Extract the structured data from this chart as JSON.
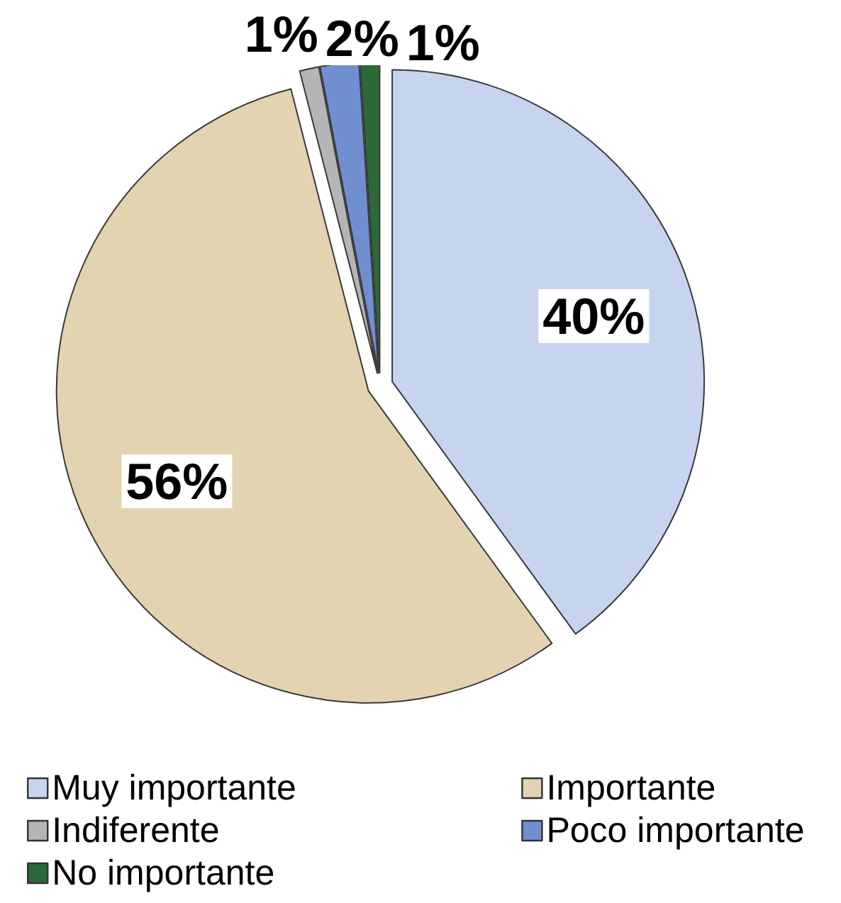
{
  "chart_data": {
    "type": "pie",
    "categories": [
      "Muy importante",
      "Importante",
      "Indiferente",
      "Poco importante",
      "No importante"
    ],
    "values": [
      40,
      56,
      1,
      2,
      1
    ],
    "colors": [
      "#c6d4ef",
      "#e3d3b0",
      "#b5b5b5",
      "#6f8fd0",
      "#2b6a38"
    ],
    "value_labels": [
      "40%",
      "56%",
      "1%",
      "2%",
      "1%"
    ],
    "legend": "bottom"
  }
}
